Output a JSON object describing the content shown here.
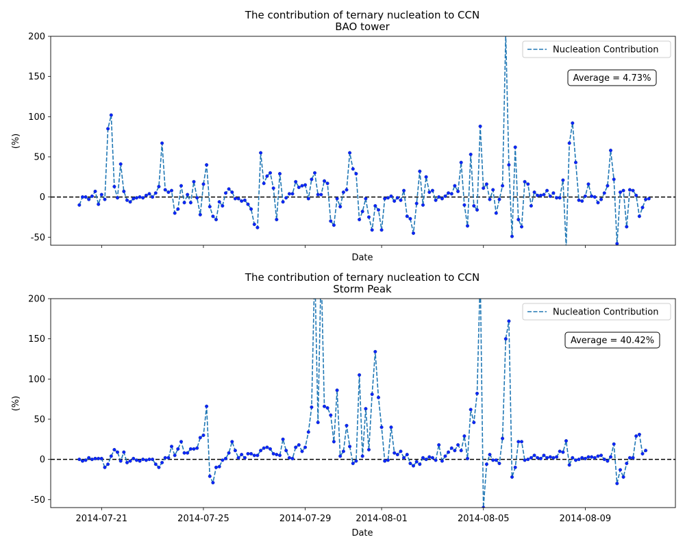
{
  "chart_data": [
    {
      "type": "line",
      "title": "The contribution of ternary nucleation to CCN\nBAO tower",
      "xlabel": "Date",
      "ylabel": "(%)",
      "ylim": [
        -60,
        200
      ],
      "yticks": [
        -50,
        0,
        50,
        100,
        150,
        200
      ],
      "xticks": [
        "2014-07-21",
        "2014-07-25",
        "2014-07-29",
        "2014-08-01",
        "2014-08-05",
        "2014-08-09"
      ],
      "xlim": [
        "2014-07-19T00:00",
        "2014-08-12T13:00"
      ],
      "legend": {
        "position": "top-right",
        "entries": [
          "Nucleation Contribution"
        ]
      },
      "annotation": "Average = 4.73%",
      "reference_line": 0,
      "series": [
        {
          "name": "Nucleation Contribution",
          "x_start": "2014-07-20T03:00",
          "interval_hours": 3,
          "values": [
            -10,
            0,
            0,
            -3,
            1,
            7,
            -9,
            3,
            -3,
            85,
            102,
            13,
            -1,
            41,
            7,
            -4,
            -6,
            -2,
            -1,
            0,
            -1,
            2,
            4,
            0,
            5,
            13,
            67,
            9,
            6,
            8,
            -20,
            -15,
            14,
            -7,
            3,
            -7,
            19,
            -1,
            -22,
            16,
            40,
            -12,
            -24,
            -28,
            -6,
            -11,
            5,
            10,
            6,
            -2,
            -2,
            -5,
            -4,
            -9,
            -15,
            -34,
            -38,
            55,
            17,
            26,
            30,
            11,
            -28,
            29,
            -6,
            -1,
            4,
            4,
            19,
            12,
            14,
            15,
            -2,
            22,
            30,
            3,
            3,
            20,
            17,
            -30,
            -35,
            -2,
            -12,
            6,
            9,
            55,
            35,
            29,
            -28,
            -18,
            -2,
            -25,
            -41,
            -11,
            -16,
            -41,
            -2,
            -1,
            1,
            -5,
            -1,
            -4,
            8,
            -24,
            -27,
            -45,
            -8,
            32,
            -10,
            25,
            6,
            8,
            -4,
            0,
            -2,
            1,
            5,
            4,
            14,
            7,
            43,
            -10,
            -36,
            53,
            -11,
            -16,
            88,
            11,
            16,
            -3,
            9,
            -20,
            -3,
            14,
            203,
            40,
            -49,
            62,
            -28,
            -37,
            19,
            16,
            -11,
            6,
            2,
            2,
            3,
            8,
            1,
            5,
            -1,
            -1,
            21,
            -62,
            67,
            92,
            43,
            -4,
            -5,
            1,
            16,
            1,
            0,
            -7,
            -3,
            5,
            14,
            58,
            22,
            -58,
            6,
            8,
            -37,
            9,
            8,
            2,
            -24,
            -13,
            -3,
            -2
          ]
        }
      ]
    },
    {
      "type": "line",
      "title": "The contribution of ternary nucleation to CCN\nStorm Peak",
      "xlabel": "Date",
      "ylabel": "(%)",
      "ylim": [
        -60,
        200
      ],
      "yticks": [
        -50,
        0,
        50,
        100,
        150,
        200
      ],
      "xticks": [
        "2014-07-21",
        "2014-07-25",
        "2014-07-29",
        "2014-08-01",
        "2014-08-05",
        "2014-08-09"
      ],
      "xlim": [
        "2014-07-19T00:00",
        "2014-08-12T13:00"
      ],
      "legend": {
        "position": "top-right",
        "entries": [
          "Nucleation Contribution"
        ]
      },
      "annotation": "Average = 40.42%",
      "reference_line": 0,
      "series": [
        {
          "name": "Nucleation Contribution",
          "x_start": "2014-07-20T03:00",
          "interval_hours": 3,
          "values": [
            0,
            -2,
            -1,
            2,
            0,
            1,
            1,
            1,
            -10,
            -6,
            4,
            12,
            9,
            -2,
            9,
            -4,
            -2,
            1,
            -1,
            -2,
            0,
            -1,
            0,
            0,
            -6,
            -10,
            -4,
            2,
            2,
            16,
            5,
            13,
            22,
            8,
            8,
            13,
            13,
            14,
            27,
            30,
            66,
            -21,
            -29,
            -10,
            -9,
            -1,
            1,
            8,
            22,
            11,
            2,
            6,
            2,
            7,
            7,
            5,
            5,
            11,
            14,
            15,
            13,
            7,
            6,
            5,
            25,
            11,
            2,
            1,
            15,
            18,
            10,
            15,
            34,
            65,
            240,
            46,
            240,
            66,
            64,
            55,
            22,
            86,
            4,
            10,
            42,
            16,
            -5,
            -2,
            105,
            4,
            63,
            12,
            81,
            134,
            77,
            40,
            -2,
            -1,
            40,
            8,
            6,
            10,
            2,
            6,
            -5,
            -8,
            -3,
            -6,
            2,
            0,
            3,
            2,
            -1,
            18,
            -2,
            4,
            9,
            14,
            11,
            18,
            11,
            29,
            1,
            62,
            46,
            82,
            230,
            -60,
            -6,
            6,
            -1,
            -1,
            -5,
            26,
            150,
            172,
            -22,
            -10,
            22,
            22,
            -1,
            0,
            2,
            5,
            2,
            1,
            5,
            2,
            3,
            2,
            3,
            10,
            9,
            23,
            -7,
            2,
            -1,
            0,
            2,
            1,
            3,
            3,
            2,
            4,
            5,
            0,
            -2,
            3,
            19,
            -30,
            -13,
            -22,
            -5,
            2,
            2,
            29,
            31,
            7,
            11
          ]
        }
      ]
    }
  ]
}
